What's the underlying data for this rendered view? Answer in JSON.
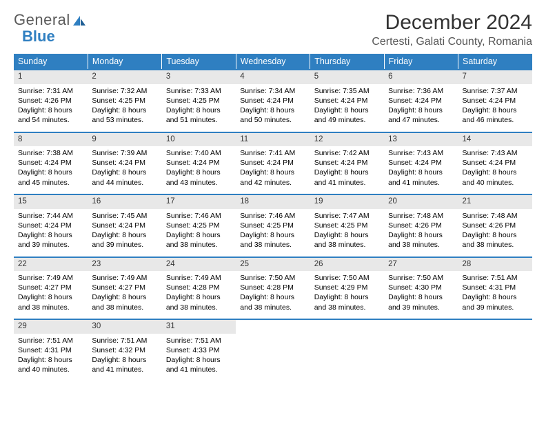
{
  "logo": {
    "text1": "General",
    "text2": "Blue"
  },
  "header": {
    "title": "December 2024",
    "location": "Certesti, Galati County, Romania"
  },
  "colors": {
    "header_bg": "#2f7fc1",
    "header_text": "#ffffff",
    "daynum_bg": "#e8e8e8",
    "border": "#2f7fc1"
  },
  "weekdays": [
    "Sunday",
    "Monday",
    "Tuesday",
    "Wednesday",
    "Thursday",
    "Friday",
    "Saturday"
  ],
  "weeks": [
    [
      {
        "n": "1",
        "sr": "Sunrise: 7:31 AM",
        "ss": "Sunset: 4:26 PM",
        "d1": "Daylight: 8 hours",
        "d2": "and 54 minutes."
      },
      {
        "n": "2",
        "sr": "Sunrise: 7:32 AM",
        "ss": "Sunset: 4:25 PM",
        "d1": "Daylight: 8 hours",
        "d2": "and 53 minutes."
      },
      {
        "n": "3",
        "sr": "Sunrise: 7:33 AM",
        "ss": "Sunset: 4:25 PM",
        "d1": "Daylight: 8 hours",
        "d2": "and 51 minutes."
      },
      {
        "n": "4",
        "sr": "Sunrise: 7:34 AM",
        "ss": "Sunset: 4:24 PM",
        "d1": "Daylight: 8 hours",
        "d2": "and 50 minutes."
      },
      {
        "n": "5",
        "sr": "Sunrise: 7:35 AM",
        "ss": "Sunset: 4:24 PM",
        "d1": "Daylight: 8 hours",
        "d2": "and 49 minutes."
      },
      {
        "n": "6",
        "sr": "Sunrise: 7:36 AM",
        "ss": "Sunset: 4:24 PM",
        "d1": "Daylight: 8 hours",
        "d2": "and 47 minutes."
      },
      {
        "n": "7",
        "sr": "Sunrise: 7:37 AM",
        "ss": "Sunset: 4:24 PM",
        "d1": "Daylight: 8 hours",
        "d2": "and 46 minutes."
      }
    ],
    [
      {
        "n": "8",
        "sr": "Sunrise: 7:38 AM",
        "ss": "Sunset: 4:24 PM",
        "d1": "Daylight: 8 hours",
        "d2": "and 45 minutes."
      },
      {
        "n": "9",
        "sr": "Sunrise: 7:39 AM",
        "ss": "Sunset: 4:24 PM",
        "d1": "Daylight: 8 hours",
        "d2": "and 44 minutes."
      },
      {
        "n": "10",
        "sr": "Sunrise: 7:40 AM",
        "ss": "Sunset: 4:24 PM",
        "d1": "Daylight: 8 hours",
        "d2": "and 43 minutes."
      },
      {
        "n": "11",
        "sr": "Sunrise: 7:41 AM",
        "ss": "Sunset: 4:24 PM",
        "d1": "Daylight: 8 hours",
        "d2": "and 42 minutes."
      },
      {
        "n": "12",
        "sr": "Sunrise: 7:42 AM",
        "ss": "Sunset: 4:24 PM",
        "d1": "Daylight: 8 hours",
        "d2": "and 41 minutes."
      },
      {
        "n": "13",
        "sr": "Sunrise: 7:43 AM",
        "ss": "Sunset: 4:24 PM",
        "d1": "Daylight: 8 hours",
        "d2": "and 41 minutes."
      },
      {
        "n": "14",
        "sr": "Sunrise: 7:43 AM",
        "ss": "Sunset: 4:24 PM",
        "d1": "Daylight: 8 hours",
        "d2": "and 40 minutes."
      }
    ],
    [
      {
        "n": "15",
        "sr": "Sunrise: 7:44 AM",
        "ss": "Sunset: 4:24 PM",
        "d1": "Daylight: 8 hours",
        "d2": "and 39 minutes."
      },
      {
        "n": "16",
        "sr": "Sunrise: 7:45 AM",
        "ss": "Sunset: 4:24 PM",
        "d1": "Daylight: 8 hours",
        "d2": "and 39 minutes."
      },
      {
        "n": "17",
        "sr": "Sunrise: 7:46 AM",
        "ss": "Sunset: 4:25 PM",
        "d1": "Daylight: 8 hours",
        "d2": "and 38 minutes."
      },
      {
        "n": "18",
        "sr": "Sunrise: 7:46 AM",
        "ss": "Sunset: 4:25 PM",
        "d1": "Daylight: 8 hours",
        "d2": "and 38 minutes."
      },
      {
        "n": "19",
        "sr": "Sunrise: 7:47 AM",
        "ss": "Sunset: 4:25 PM",
        "d1": "Daylight: 8 hours",
        "d2": "and 38 minutes."
      },
      {
        "n": "20",
        "sr": "Sunrise: 7:48 AM",
        "ss": "Sunset: 4:26 PM",
        "d1": "Daylight: 8 hours",
        "d2": "and 38 minutes."
      },
      {
        "n": "21",
        "sr": "Sunrise: 7:48 AM",
        "ss": "Sunset: 4:26 PM",
        "d1": "Daylight: 8 hours",
        "d2": "and 38 minutes."
      }
    ],
    [
      {
        "n": "22",
        "sr": "Sunrise: 7:49 AM",
        "ss": "Sunset: 4:27 PM",
        "d1": "Daylight: 8 hours",
        "d2": "and 38 minutes."
      },
      {
        "n": "23",
        "sr": "Sunrise: 7:49 AM",
        "ss": "Sunset: 4:27 PM",
        "d1": "Daylight: 8 hours",
        "d2": "and 38 minutes."
      },
      {
        "n": "24",
        "sr": "Sunrise: 7:49 AM",
        "ss": "Sunset: 4:28 PM",
        "d1": "Daylight: 8 hours",
        "d2": "and 38 minutes."
      },
      {
        "n": "25",
        "sr": "Sunrise: 7:50 AM",
        "ss": "Sunset: 4:28 PM",
        "d1": "Daylight: 8 hours",
        "d2": "and 38 minutes."
      },
      {
        "n": "26",
        "sr": "Sunrise: 7:50 AM",
        "ss": "Sunset: 4:29 PM",
        "d1": "Daylight: 8 hours",
        "d2": "and 38 minutes."
      },
      {
        "n": "27",
        "sr": "Sunrise: 7:50 AM",
        "ss": "Sunset: 4:30 PM",
        "d1": "Daylight: 8 hours",
        "d2": "and 39 minutes."
      },
      {
        "n": "28",
        "sr": "Sunrise: 7:51 AM",
        "ss": "Sunset: 4:31 PM",
        "d1": "Daylight: 8 hours",
        "d2": "and 39 minutes."
      }
    ],
    [
      {
        "n": "29",
        "sr": "Sunrise: 7:51 AM",
        "ss": "Sunset: 4:31 PM",
        "d1": "Daylight: 8 hours",
        "d2": "and 40 minutes."
      },
      {
        "n": "30",
        "sr": "Sunrise: 7:51 AM",
        "ss": "Sunset: 4:32 PM",
        "d1": "Daylight: 8 hours",
        "d2": "and 41 minutes."
      },
      {
        "n": "31",
        "sr": "Sunrise: 7:51 AM",
        "ss": "Sunset: 4:33 PM",
        "d1": "Daylight: 8 hours",
        "d2": "and 41 minutes."
      },
      null,
      null,
      null,
      null
    ]
  ]
}
